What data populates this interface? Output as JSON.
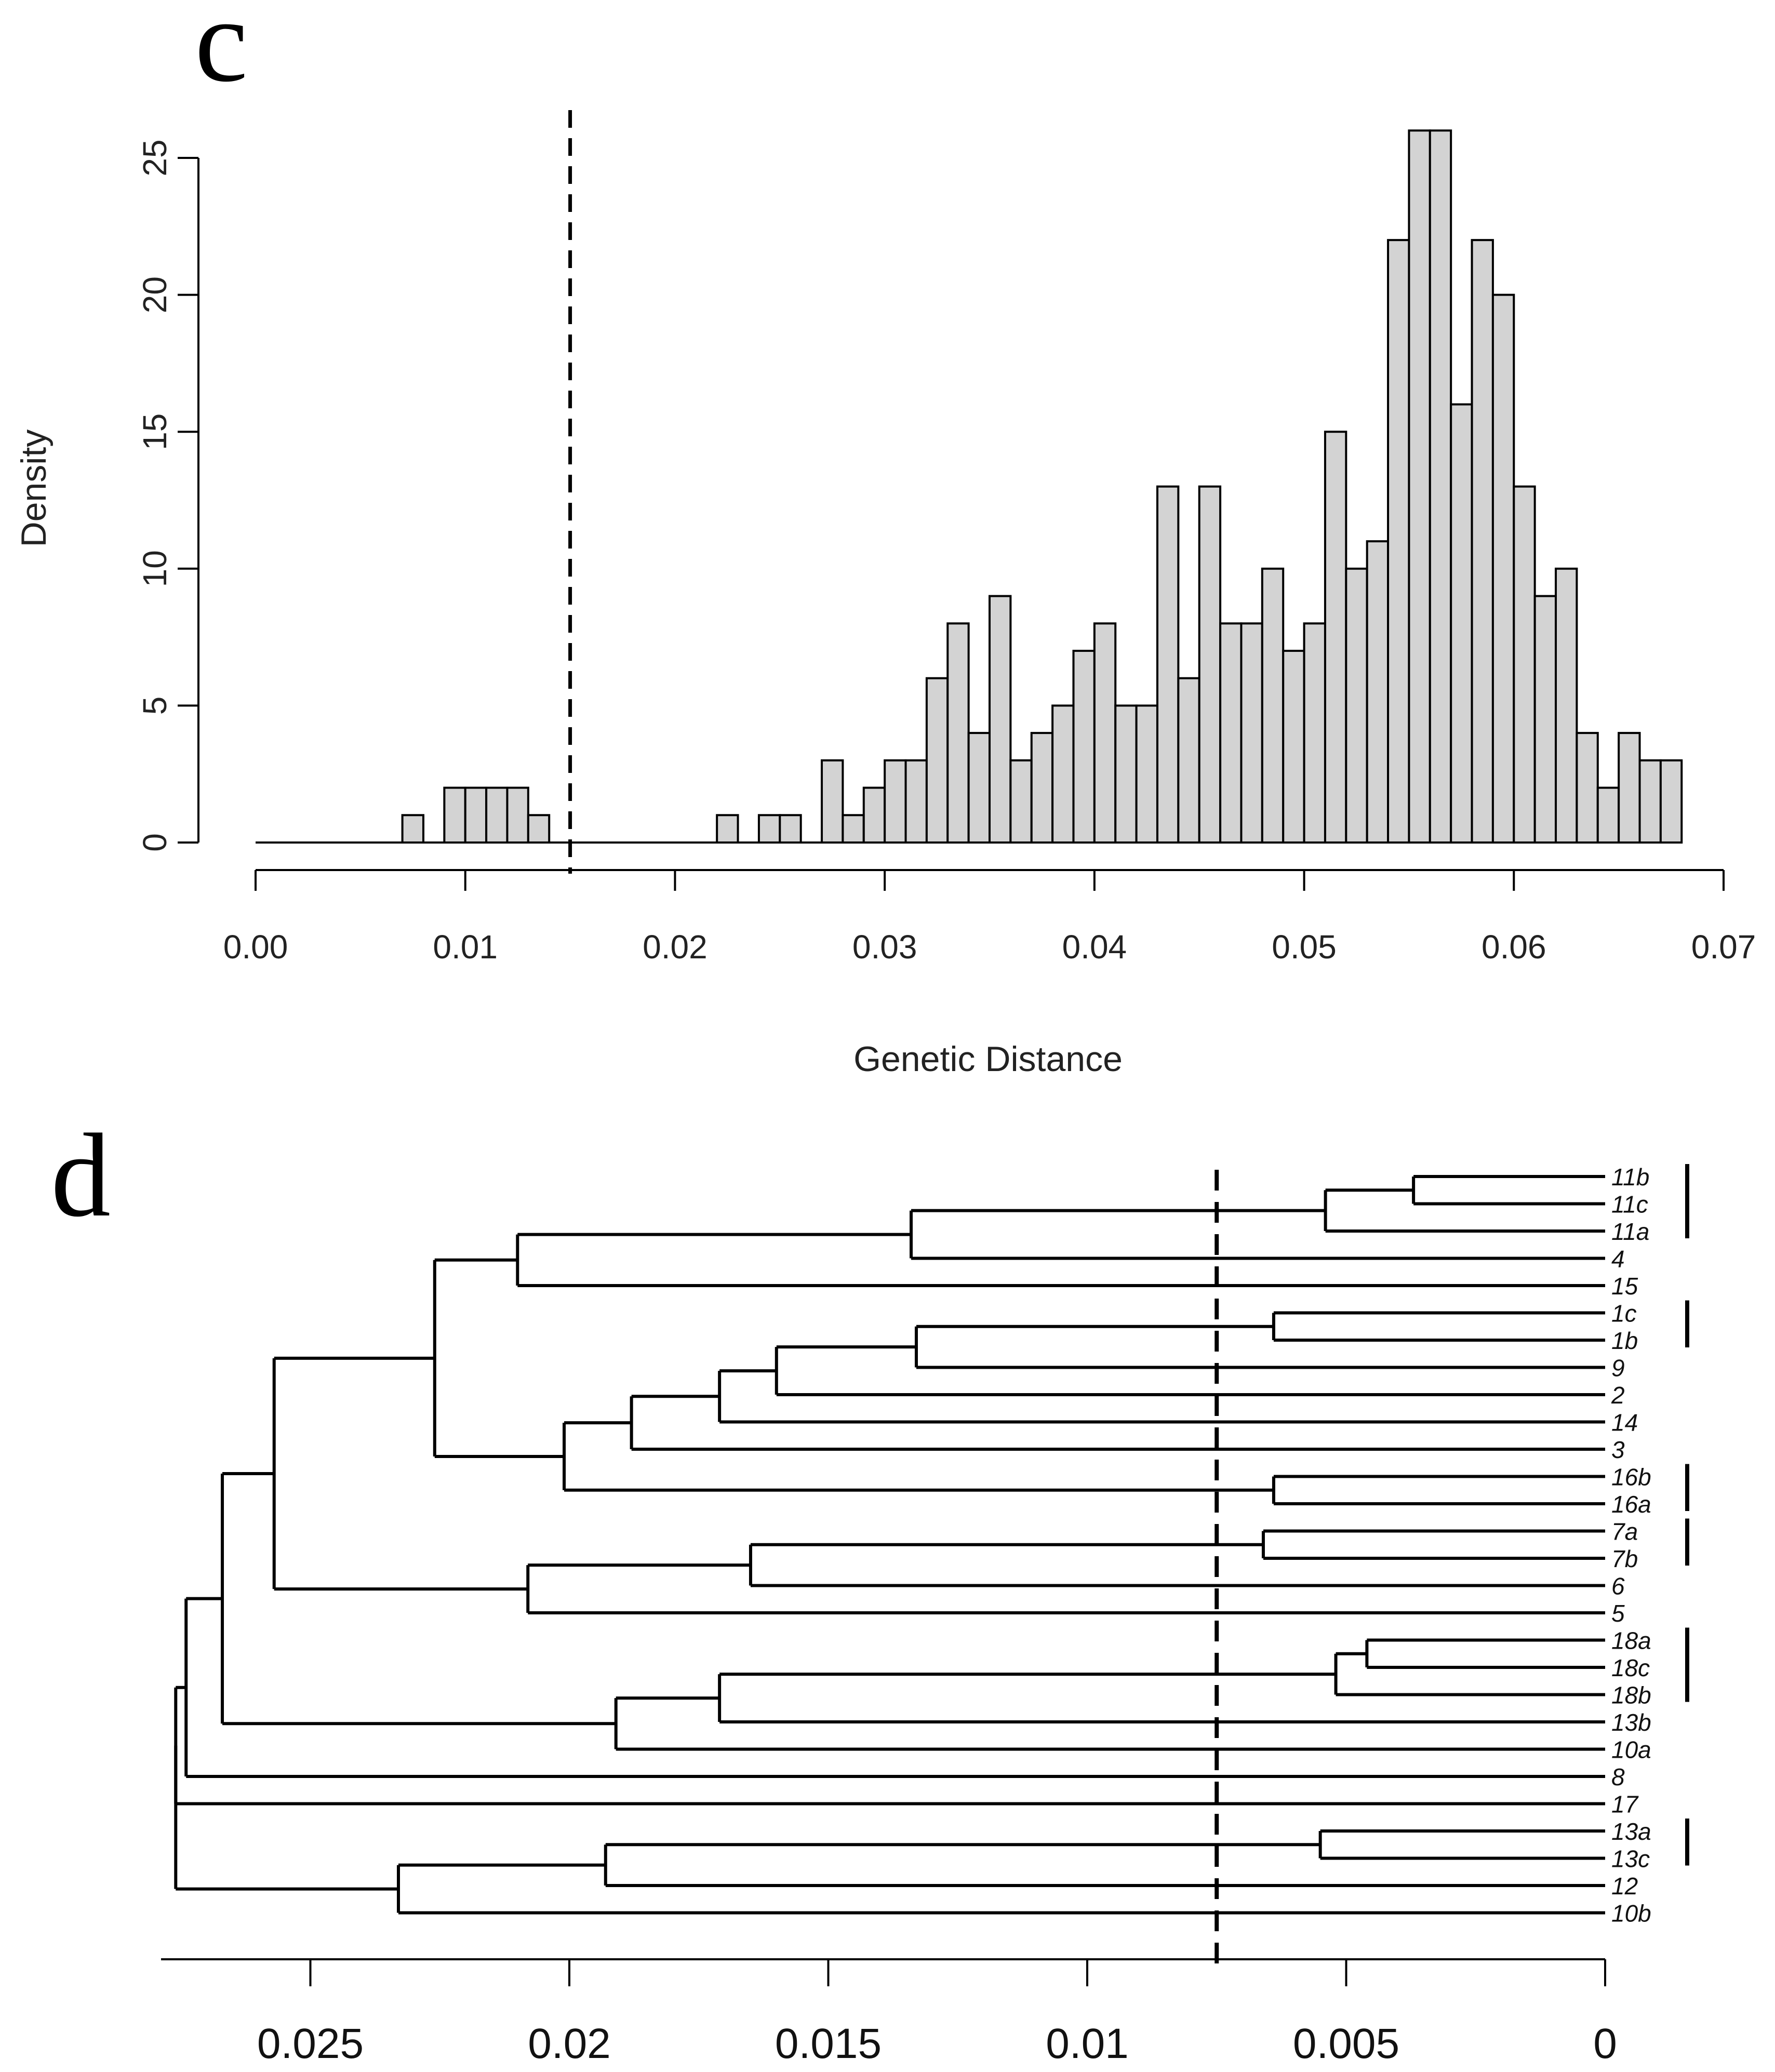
{
  "chart_data": [
    {
      "panel": "c",
      "type": "bar",
      "subtype": "histogram",
      "xlabel": "Genetic Distance",
      "ylabel": "Density",
      "xlim": [
        0,
        0.07
      ],
      "ylim": [
        0,
        25
      ],
      "x_ticks": [
        "0.00",
        "0.01",
        "0.02",
        "0.03",
        "0.04",
        "0.05",
        "0.06",
        "0.07"
      ],
      "y_ticks": [
        "0",
        "5",
        "10",
        "15",
        "20",
        "25"
      ],
      "bin_width": 0.001,
      "bin_starts": [
        0.007,
        0.008,
        0.009,
        0.01,
        0.011,
        0.012,
        0.013,
        0.014,
        0.015,
        0.016,
        0.017,
        0.018,
        0.019,
        0.02,
        0.021,
        0.022,
        0.023,
        0.024,
        0.025,
        0.026,
        0.027,
        0.028,
        0.029,
        0.03,
        0.031,
        0.032,
        0.033,
        0.034,
        0.035,
        0.036,
        0.037,
        0.038,
        0.039,
        0.04,
        0.041,
        0.042,
        0.043,
        0.044,
        0.045,
        0.046,
        0.047,
        0.048,
        0.049,
        0.05,
        0.051,
        0.052,
        0.053,
        0.054,
        0.055,
        0.056,
        0.057,
        0.058,
        0.059,
        0.06,
        0.061,
        0.062,
        0.063,
        0.064,
        0.065,
        0.066,
        0.067
      ],
      "values": [
        1,
        0,
        2,
        2,
        2,
        2,
        1,
        0,
        0,
        0,
        0,
        0,
        0,
        0,
        0,
        1,
        0,
        1,
        1,
        0,
        3,
        1,
        2,
        3,
        3,
        6,
        8,
        4,
        9,
        3,
        4,
        5,
        7,
        8,
        5,
        5,
        13,
        6,
        13,
        8,
        8,
        10,
        7,
        8,
        15,
        10,
        11,
        22,
        26,
        26,
        16,
        22,
        20,
        13,
        9,
        10,
        4,
        2,
        4,
        3,
        3
      ],
      "cutoff_line": 0.015
    },
    {
      "panel": "d",
      "type": "dendrogram",
      "x_axis_reversed": true,
      "xlim": [
        0.028,
        0
      ],
      "x_ticks": [
        {
          "value": 0.025,
          "label": "0.025"
        },
        {
          "value": 0.02,
          "label": "0.02"
        },
        {
          "value": 0.015,
          "label": "0.015"
        },
        {
          "value": 0.01,
          "label": "0.01"
        },
        {
          "value": 0.005,
          "label": "0.005"
        },
        {
          "value": 0,
          "label": "0"
        }
      ],
      "cutoff_line": 0.0075,
      "leaves": [
        "11b",
        "11c",
        "11a",
        "4",
        "15",
        "1c",
        "1b",
        "9",
        "2",
        "14",
        "3",
        "16b",
        "16a",
        "7a",
        "7b",
        "6",
        "5",
        "18a",
        "18c",
        "18b",
        "13b",
        "10a",
        "8",
        "17",
        "13a",
        "13c",
        "12",
        "10b"
      ],
      "merges": [
        [
          "11b",
          "11c",
          0.0037
        ],
        [
          "11b|11c",
          "11a",
          0.0054
        ],
        [
          "11b|11c|11a",
          "4",
          0.0134
        ],
        [
          "11b|11c|11a|4",
          "15",
          0.021
        ],
        [
          "1c",
          "1b",
          0.0064
        ],
        [
          "1c|1b",
          "9",
          0.0133
        ],
        [
          "1c|1b|9",
          "2",
          0.016
        ],
        [
          "1c|1b|9|2",
          "14",
          0.0171
        ],
        [
          "1c|1b|9|2|14",
          "3",
          0.0188
        ],
        [
          "16b",
          "16a",
          0.0064
        ],
        [
          "3-group",
          "16-group",
          0.0201
        ],
        [
          "11-15-group",
          "1-16-group",
          0.0226
        ],
        [
          "7a",
          "7b",
          0.0066
        ],
        [
          "7a|7b",
          "6",
          0.0165
        ],
        [
          "7a|7b|6",
          "5",
          0.0208
        ],
        [
          "A",
          "B",
          0.0257
        ],
        [
          "18a",
          "18c",
          0.0046
        ],
        [
          "18a|18c",
          "18b",
          0.0052
        ],
        [
          "18-group",
          "13b",
          0.0171
        ],
        [
          "18-13b-group",
          "10a",
          0.0191
        ],
        [
          "main",
          "18-10a-group",
          0.0267
        ],
        [
          "main2",
          "8",
          0.0274
        ],
        [
          "13a",
          "13c",
          0.0055
        ],
        [
          "13a|13c",
          "12",
          0.0193
        ],
        [
          "13-12-group",
          "10b",
          0.0233
        ],
        [
          "main3",
          "17",
          0.0276
        ],
        [
          "main4",
          "13-10b-group",
          0.0276
        ]
      ],
      "clade_bars": [
        [
          "11b",
          "11a"
        ],
        [
          "1c",
          "1b"
        ],
        [
          "16b",
          "16a"
        ],
        [
          "7a",
          "7b"
        ],
        [
          "18a",
          "18b"
        ],
        [
          "13a",
          "13c"
        ]
      ]
    }
  ],
  "panels": {
    "c": {
      "label": "c"
    },
    "d": {
      "label": "d"
    }
  }
}
